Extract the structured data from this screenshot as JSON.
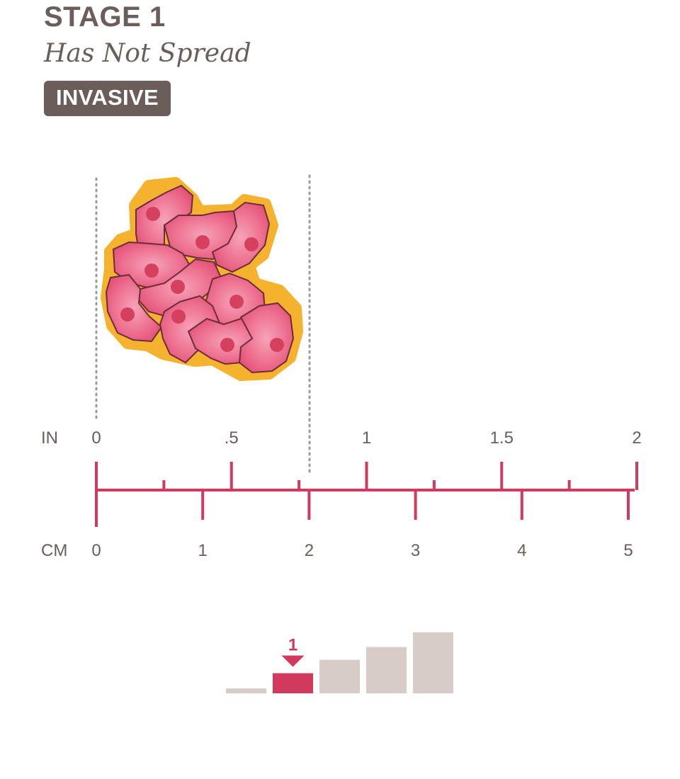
{
  "header": {
    "stage": "STAGE 1",
    "subtitle": "Has Not Spread",
    "badge": "INVASIVE"
  },
  "ruler": {
    "inch_unit": "IN",
    "cm_unit": "CM",
    "inch_labels": [
      "0",
      ".5",
      "1",
      "1.5",
      "2"
    ],
    "cm_labels": [
      "0",
      "1",
      "2",
      "3",
      "4",
      "5"
    ],
    "tumor_size_cm": [
      0,
      2
    ]
  },
  "stage_indicator": {
    "label": "1",
    "stages": [
      {
        "level": 0.08,
        "active": false
      },
      {
        "level": 0.33,
        "active": true
      },
      {
        "level": 0.55,
        "active": false
      },
      {
        "level": 0.76,
        "active": false
      },
      {
        "level": 1.0,
        "active": false
      }
    ]
  },
  "colors": {
    "text": "#6b5d59",
    "accent": "#d23a5d",
    "cell_outline": "#f5b22f",
    "cell_fill": "#ea5a7e",
    "inactive_bar": "#d8ccc8"
  }
}
